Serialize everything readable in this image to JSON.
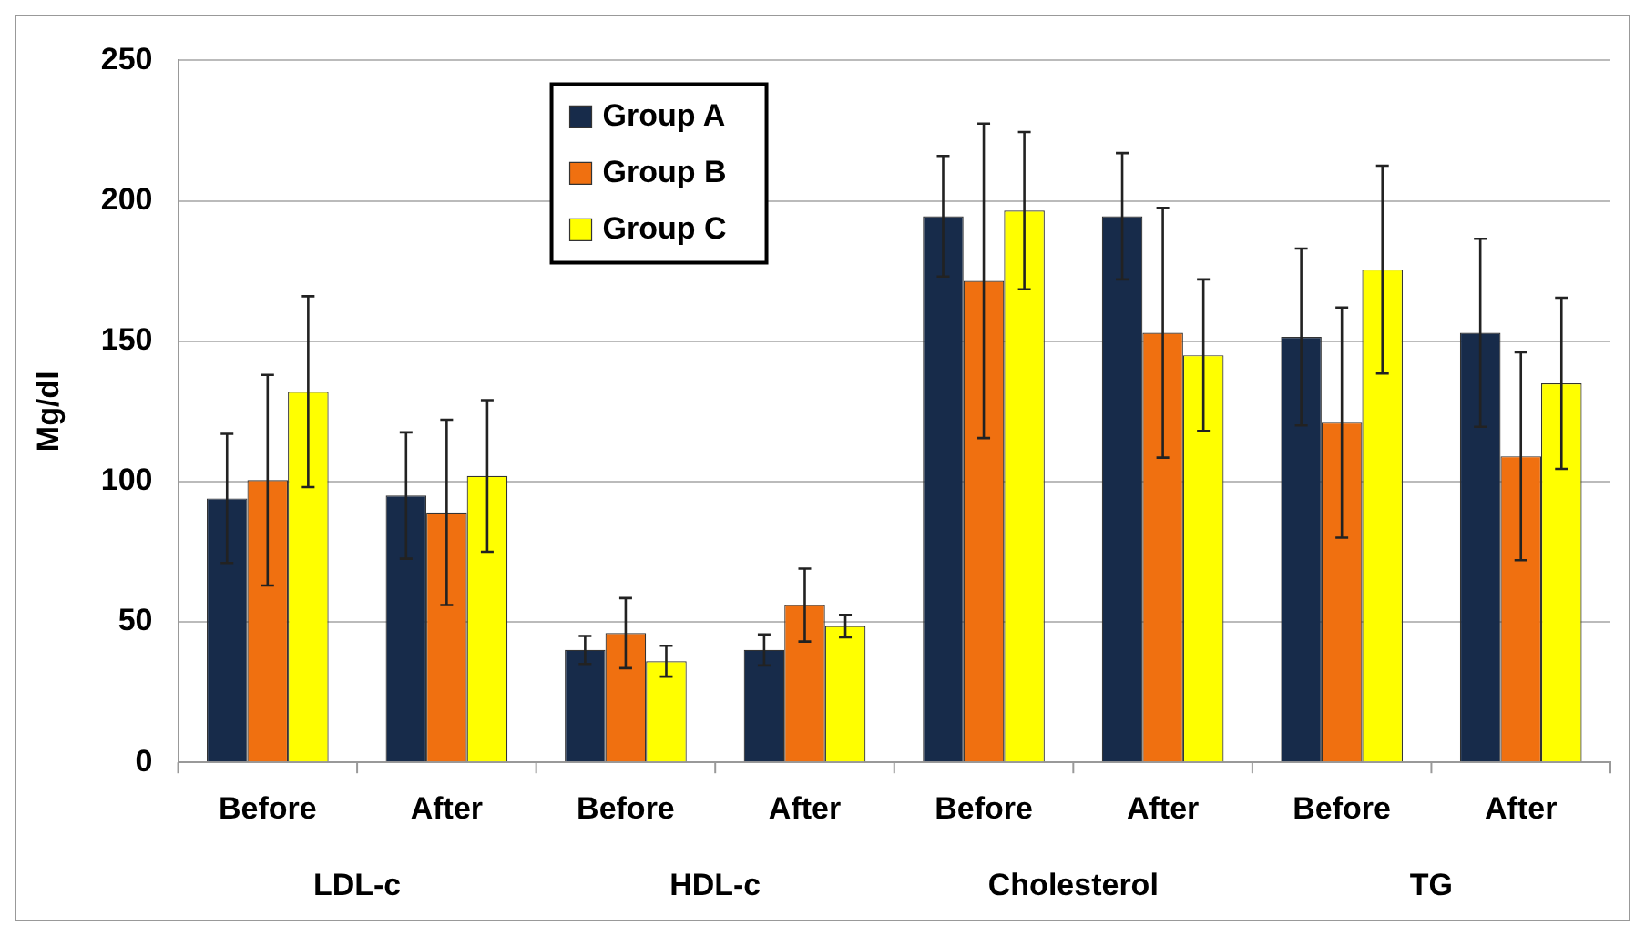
{
  "chart_data": {
    "type": "bar",
    "ylabel": "Mg/dl",
    "categories": [
      "Before",
      "After",
      "Before",
      "After",
      "Before",
      "After",
      "Before",
      "After"
    ],
    "annotations": [
      "LDL-c",
      "HDL-c",
      "Cholesterol",
      "TG"
    ],
    "series": [
      {
        "name": "Group A",
        "color": "#172b4a",
        "values": [
          94,
          95,
          40,
          40,
          194.5,
          194.5,
          151.5,
          153
        ],
        "errors": [
          23,
          22.5,
          5,
          5.5,
          21.5,
          22.5,
          31.5,
          33.5
        ]
      },
      {
        "name": "Group B",
        "color": "#f07010",
        "values": [
          100.5,
          89,
          46,
          56,
          171.5,
          153,
          121,
          109
        ],
        "errors": [
          37.5,
          33,
          12.5,
          13,
          56,
          44.5,
          41,
          37
        ]
      },
      {
        "name": "Group C",
        "color": "#ffff00",
        "values": [
          132,
          102,
          36,
          48.5,
          196.5,
          145,
          175.5,
          135
        ],
        "errors": [
          34,
          27,
          5.5,
          4,
          28,
          27,
          37,
          30.5
        ]
      }
    ],
    "ylim": [
      0,
      250
    ],
    "yticks": [
      0,
      50,
      100,
      150,
      200,
      250
    ],
    "grid": "y",
    "legend": "top left"
  }
}
